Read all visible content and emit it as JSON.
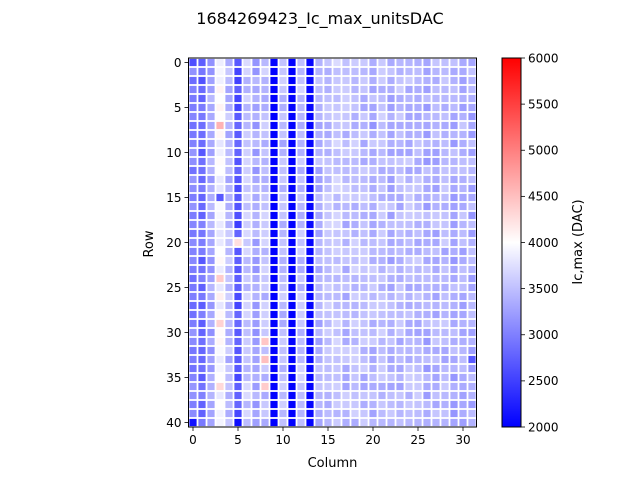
{
  "chart_data": {
    "type": "heatmap",
    "title": "1684269423_Ic_max_unitsDAC",
    "xlabel": "Column",
    "ylabel": "Row",
    "n_cols": 32,
    "n_rows": 41,
    "x_ticks": [
      0,
      5,
      10,
      15,
      20,
      25,
      30
    ],
    "y_ticks": [
      0,
      5,
      10,
      15,
      20,
      25,
      30,
      35,
      40
    ],
    "colorbar": {
      "label": "Ic,max (DAC)",
      "min": 2000,
      "max": 6000,
      "ticks": [
        2000,
        2500,
        3000,
        3500,
        4000,
        4500,
        5000,
        5500,
        6000
      ],
      "colormap": "bwr",
      "colors": {
        "low": "#0000ff",
        "mid": "#ffffff",
        "high": "#ff0000"
      }
    },
    "grid": true,
    "column_profile": [
      3000,
      2850,
      3300,
      3950,
      3450,
      2650,
      3550,
      3300,
      3500,
      2000,
      3450,
      2000,
      3500,
      2050,
      3400,
      3500,
      3550,
      3450,
      3500,
      3450,
      3450,
      3500,
      3400,
      3450,
      3450,
      3450,
      3350,
      3400,
      3450,
      3350,
      3400,
      3350
    ],
    "cell_overrides": [
      {
        "row": 0,
        "col": 0,
        "value": 2600
      },
      {
        "row": 40,
        "col": 0,
        "value": 2150
      },
      {
        "row": 0,
        "col": 5,
        "value": 2700
      },
      {
        "row": 40,
        "col": 5,
        "value": 2100
      },
      {
        "row": 7,
        "col": 3,
        "value": 4600
      },
      {
        "row": 7,
        "col": 20,
        "value": 3150
      },
      {
        "row": 33,
        "col": 31,
        "value": 2700
      },
      {
        "row": 2,
        "col": 1,
        "value": 2650
      },
      {
        "row": 15,
        "col": 3,
        "value": 2700
      },
      {
        "row": 24,
        "col": 3,
        "value": 4400
      },
      {
        "row": 29,
        "col": 3,
        "value": 4350
      },
      {
        "row": 36,
        "col": 3,
        "value": 4300
      },
      {
        "row": 31,
        "col": 8,
        "value": 4450
      },
      {
        "row": 33,
        "col": 8,
        "value": 4500
      },
      {
        "row": 36,
        "col": 8,
        "value": 4400
      },
      {
        "row": 20,
        "col": 5,
        "value": 4250
      }
    ]
  }
}
